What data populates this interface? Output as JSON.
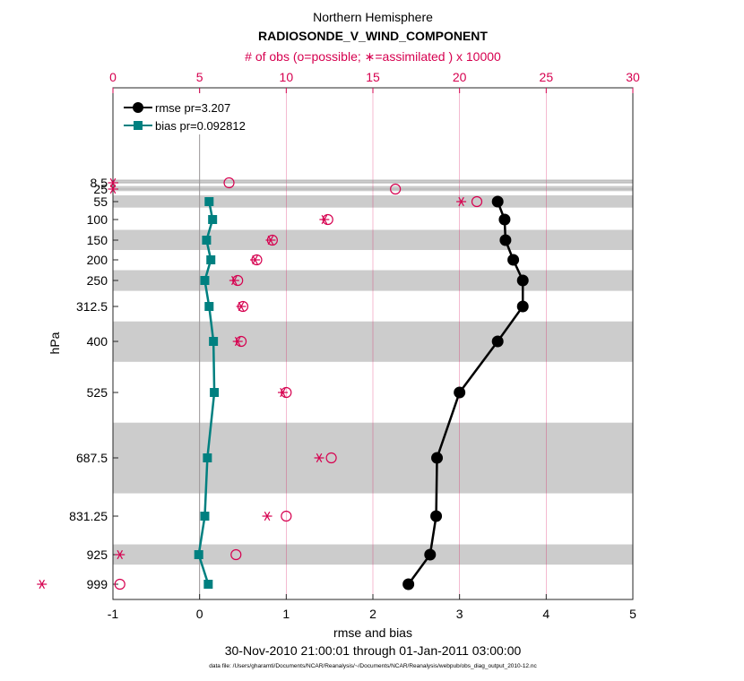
{
  "chart_data": {
    "type": "line",
    "title_line1": "Northern Hemisphere",
    "title_line2": "RADIOSONDE_V_WIND_COMPONENT",
    "top_axis_label": "# of obs (o=possible; ∗=assimilated ) x 10000",
    "xlabel": "rmse and bias",
    "ylabel": "hPa",
    "date_range": "30-Nov-2010 21:00:01 through 01-Jan-2011 03:00:00",
    "footnote": "data file: /Users/gharamti/Documents/NCAR/Reanalysis/~/Documents/NCAR/Reanalysis/webpub/obs_diag_output_2010-12.nc",
    "xlim": [
      -1,
      5
    ],
    "x_ticks": [
      "-1",
      "0",
      "1",
      "2",
      "3",
      "4",
      "5"
    ],
    "top_xlim": [
      0,
      30
    ],
    "top_ticks": [
      "0",
      "5",
      "10",
      "15",
      "20",
      "25",
      "30"
    ],
    "levels": [
      8.5,
      25,
      55,
      100,
      150,
      200,
      250,
      312.5,
      400,
      525,
      687.5,
      831.25,
      925,
      999
    ],
    "level_labels": [
      "8.5",
      "25",
      "55",
      "100",
      "150",
      "200",
      "250",
      "312.5",
      "400",
      "525",
      "687.5",
      "831.25",
      "925",
      "999"
    ],
    "shaded_bands": [
      [
        5,
        10
      ],
      [
        17,
        30
      ],
      [
        40,
        70
      ],
      [
        125,
        175
      ],
      [
        225,
        275
      ],
      [
        350,
        450
      ],
      [
        600,
        775
      ],
      [
        900,
        950
      ]
    ],
    "series": [
      {
        "name": "rmse pr=3.207",
        "color": "#000000",
        "marker": "circle",
        "levels": [
          55,
          100,
          150,
          200,
          250,
          312.5,
          400,
          525,
          687.5,
          831.25,
          925,
          999
        ],
        "values": [
          3.44,
          3.52,
          3.53,
          3.62,
          3.73,
          3.73,
          3.44,
          3.0,
          2.74,
          2.73,
          2.66,
          2.41
        ]
      },
      {
        "name": "bias pr=0.092812",
        "color": "#008080",
        "marker": "square",
        "levels": [
          55,
          100,
          150,
          200,
          250,
          312.5,
          400,
          525,
          687.5,
          831.25,
          925,
          999
        ],
        "values": [
          0.11,
          0.15,
          0.08,
          0.13,
          0.06,
          0.11,
          0.16,
          0.17,
          0.09,
          0.06,
          -0.01,
          0.1
        ]
      }
    ],
    "obs_possible": {
      "symbol": "o",
      "color": "#d6004f",
      "levels": [
        8.5,
        25,
        55,
        100,
        150,
        200,
        250,
        312.5,
        400,
        525,
        687.5,
        831.25,
        925,
        999
      ],
      "values": [
        6.7,
        16.3,
        21.0,
        12.4,
        9.2,
        8.3,
        7.2,
        7.5,
        7.4,
        10.0,
        12.6,
        10.0,
        7.1,
        0.4
      ]
    },
    "obs_assimilated": {
      "symbol": "*",
      "color": "#d6004f",
      "levels": [
        8.5,
        25,
        55,
        100,
        150,
        200,
        250,
        312.5,
        400,
        525,
        687.5,
        831.25,
        925,
        999
      ],
      "values": [
        0.0,
        0.0,
        20.1,
        12.2,
        9.1,
        8.2,
        7.0,
        7.4,
        7.2,
        9.8,
        11.9,
        8.9,
        0.4,
        -4.1
      ]
    }
  }
}
